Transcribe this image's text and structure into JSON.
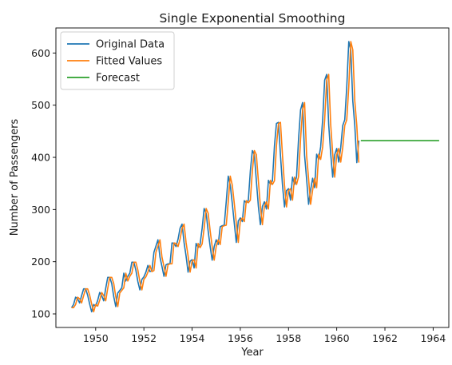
{
  "chart_data": {
    "type": "line",
    "title": "Single Exponential Smoothing",
    "xlabel": "Year",
    "ylabel": "Number of Passengers",
    "xlim": [
      1948.35,
      1964.65
    ],
    "ylim": [
      74,
      648
    ],
    "xticks": [
      1950,
      1952,
      1954,
      1956,
      1958,
      1960,
      1962,
      1964
    ],
    "yticks": [
      100,
      200,
      300,
      400,
      500,
      600
    ],
    "grid": false,
    "legend_position": "top-left",
    "x_start": 1949.0,
    "x_step": 0.08333333,
    "series": [
      {
        "name": "Original Data",
        "color": "#1f77b4",
        "values": [
          112,
          118,
          132,
          129,
          121,
          135,
          148,
          148,
          136,
          119,
          104,
          118,
          115,
          126,
          141,
          135,
          125,
          149,
          170,
          170,
          158,
          133,
          114,
          140,
          145,
          150,
          178,
          163,
          172,
          178,
          199,
          199,
          184,
          162,
          146,
          166,
          171,
          180,
          193,
          181,
          183,
          218,
          230,
          242,
          209,
          191,
          172,
          194,
          196,
          196,
          236,
          235,
          229,
          243,
          264,
          272,
          237,
          211,
          180,
          201,
          204,
          188,
          235,
          227,
          234,
          264,
          302,
          293,
          259,
          229,
          203,
          229,
          242,
          233,
          267,
          269,
          270,
          315,
          364,
          347,
          312,
          274,
          237,
          278,
          284,
          277,
          317,
          313,
          318,
          374,
          413,
          405,
          355,
          306,
          271,
          306,
          315,
          301,
          356,
          348,
          355,
          422,
          465,
          467,
          404,
          347,
          305,
          336,
          340,
          318,
          362,
          348,
          363,
          435,
          491,
          505,
          404,
          359,
          310,
          337,
          360,
          342,
          406,
          396,
          420,
          472,
          548,
          559,
          463,
          407,
          362,
          405,
          417,
          391,
          419,
          461,
          472,
          535,
          622,
          606,
          508,
          461,
          390,
          432
        ]
      },
      {
        "name": "Fitted Values",
        "color": "#ff7f0e",
        "values": [
          112,
          112,
          118,
          132,
          129,
          121,
          135,
          148,
          148,
          136,
          119,
          104,
          118,
          115,
          126,
          141,
          135,
          125,
          149,
          170,
          170,
          158,
          133,
          114,
          140,
          145,
          150,
          178,
          163,
          172,
          178,
          199,
          199,
          184,
          162,
          146,
          166,
          171,
          180,
          193,
          181,
          183,
          218,
          230,
          242,
          209,
          191,
          172,
          194,
          196,
          196,
          236,
          235,
          229,
          243,
          264,
          272,
          237,
          211,
          180,
          201,
          204,
          188,
          235,
          227,
          234,
          264,
          302,
          293,
          259,
          229,
          203,
          229,
          242,
          233,
          267,
          269,
          270,
          315,
          364,
          347,
          312,
          274,
          237,
          278,
          284,
          277,
          317,
          313,
          318,
          374,
          413,
          405,
          355,
          306,
          271,
          306,
          315,
          301,
          356,
          348,
          355,
          422,
          465,
          467,
          404,
          347,
          305,
          336,
          340,
          318,
          362,
          348,
          363,
          435,
          491,
          505,
          404,
          359,
          310,
          337,
          360,
          342,
          406,
          396,
          420,
          472,
          548,
          559,
          463,
          407,
          362,
          405,
          417,
          391,
          419,
          461,
          472,
          535,
          622,
          606,
          508,
          461,
          390
        ]
      },
      {
        "name": "Forecast",
        "color": "#2ca02c",
        "x": [
          1961.0,
          1964.25
        ],
        "values": [
          432,
          432
        ]
      }
    ]
  }
}
